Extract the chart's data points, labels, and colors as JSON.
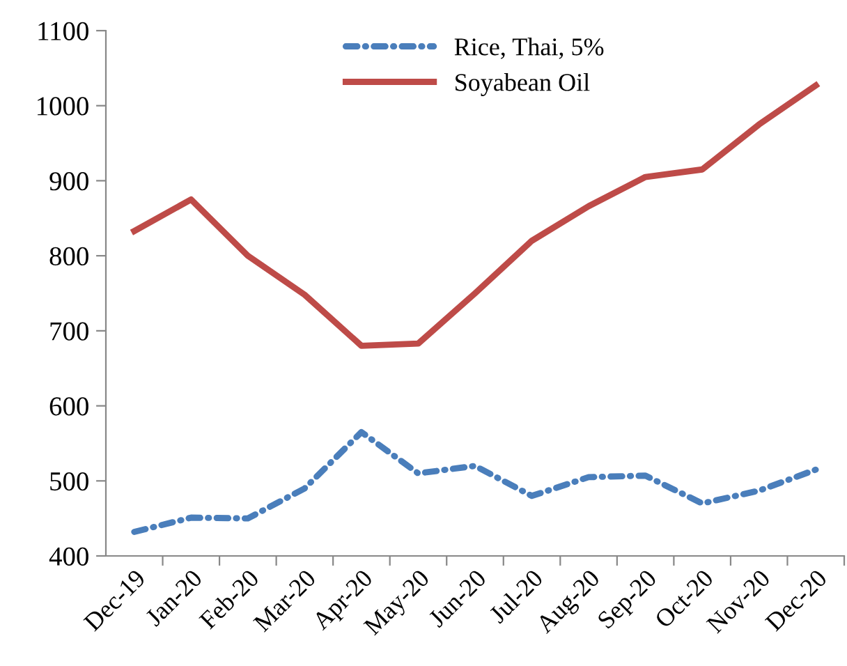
{
  "chart_data": {
    "type": "line",
    "categories": [
      "Dec-19",
      "Jan-20",
      "Feb-20",
      "Mar-20",
      "Apr-20",
      "May-20",
      "Jun-20",
      "Jul-20",
      "Aug-20",
      "Sep-20",
      "Oct-20",
      "Nov-20",
      "Dec-20"
    ],
    "series": [
      {
        "name": "Rice, Thai, 5%",
        "color": "#4a7ebb",
        "line_style": "dashdot",
        "values": [
          432,
          451,
          450,
          490,
          565,
          510,
          520,
          480,
          505,
          507,
          470,
          487,
          515
        ]
      },
      {
        "name": "Soyabean Oil",
        "color": "#be4b48",
        "line_style": "solid",
        "values": [
          833,
          875,
          800,
          748,
          680,
          683,
          750,
          820,
          866,
          905,
          915,
          975,
          1027
        ]
      }
    ],
    "ylim": [
      400,
      1100
    ],
    "yticks": [
      400,
      500,
      600,
      700,
      800,
      900,
      1000,
      1100
    ],
    "grid": false,
    "legend": "top",
    "marker": "none"
  }
}
